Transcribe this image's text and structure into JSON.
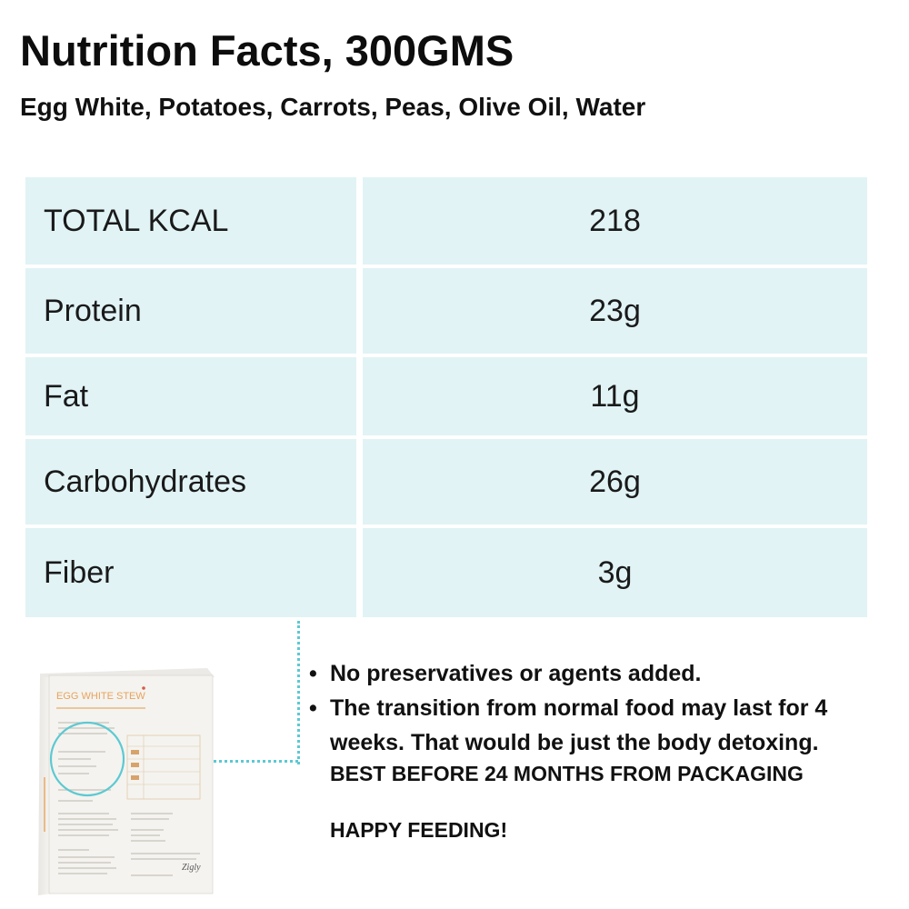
{
  "header": {
    "title": "Nutrition Facts, 300GMS",
    "ingredients": "Egg White, Potatoes, Carrots, Peas, Olive Oil, Water"
  },
  "nutrition_table": [
    {
      "label": "TOTAL KCAL",
      "value": "218"
    },
    {
      "label": "Protein",
      "value": "23g"
    },
    {
      "label": "Fat",
      "value": "11g"
    },
    {
      "label": "Carbohydrates",
      "value": "26g"
    },
    {
      "label": "Fiber",
      "value": "3g"
    }
  ],
  "notes": {
    "bullets": [
      "No preservatives or agents added.",
      "The transition from normal food may last for 4 weeks. That would be just the body detoxing."
    ],
    "best_before": "BEST BEFORE 24 MONTHS FROM PACKAGING",
    "closing": "HAPPY FEEDING!"
  },
  "package": {
    "name": "EGG WHITE STEW",
    "brand": "Zigly"
  },
  "colors": {
    "table_bg": "#e1f3f5",
    "accent_dotted": "#5cc9d2",
    "package_label": "#e8a35c"
  }
}
